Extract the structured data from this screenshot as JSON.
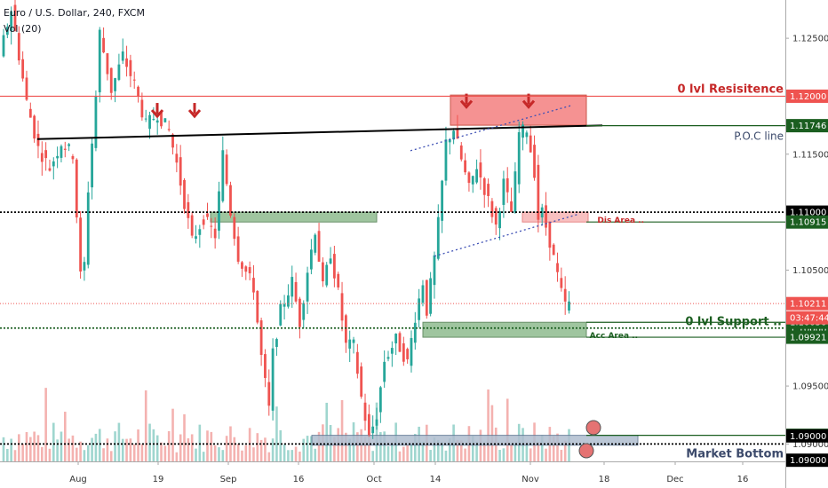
{
  "header": {
    "symbol_line": "Euro / U.S. Dollar, 240, FXCM",
    "indicator_line": "Vol (20)"
  },
  "colors": {
    "up": "#26a69a",
    "down": "#ef5350",
    "resistance": "#ef5350",
    "support_green": "#1b5e20",
    "zone_green": "#8fbc8f",
    "zone_red": "#f48080",
    "zone_pink": "#f7b6b6",
    "zone_blue": "#b0bed0",
    "dotted": "#000000"
  },
  "chart_data": {
    "type": "candlestick",
    "title": "Euro / U.S. Dollar, 240, FXCM",
    "xlabel": "",
    "ylabel": "",
    "ylim": [
      1.0885,
      1.1283
    ],
    "grid": false,
    "x_ticks": [
      "Aug",
      "19",
      "Sep",
      "16",
      "Oct",
      "14",
      "Nov",
      "18",
      "Dec",
      "16"
    ],
    "y_ticks": [
      1.125,
      1.12,
      1.115,
      1.11,
      1.105,
      1.1,
      1.095,
      1.09
    ],
    "y_tick_labels": [
      "1.12500",
      "1.12000",
      "1.11500",
      "1.11000",
      "1.10500",
      "1.10000",
      "1.09500",
      "1.09000"
    ],
    "price_path": [
      [
        0,
        1.1235
      ],
      [
        3,
        1.1275
      ],
      [
        7,
        1.1195
      ],
      [
        10,
        1.1155
      ],
      [
        13,
        1.1138
      ],
      [
        16,
        1.116
      ],
      [
        19,
        1.115
      ],
      [
        21,
        1.1045
      ],
      [
        22,
        1.1055
      ],
      [
        23,
        1.112
      ],
      [
        25,
        1.12
      ],
      [
        26,
        1.1255
      ],
      [
        29,
        1.1205
      ],
      [
        32,
        1.1235
      ],
      [
        35,
        1.121
      ],
      [
        38,
        1.1175
      ],
      [
        41,
        1.1185
      ],
      [
        44,
        1.117
      ],
      [
        46,
        1.1142
      ],
      [
        50,
        1.1075
      ],
      [
        53,
        1.1095
      ],
      [
        56,
        1.108
      ],
      [
        58,
        1.115
      ],
      [
        60,
        1.11
      ],
      [
        62,
        1.1062
      ],
      [
        66,
        1.1035
      ],
      [
        68,
        1.0975
      ],
      [
        70,
        1.093
      ],
      [
        71,
        1.0978
      ],
      [
        73,
        1.1015
      ],
      [
        76,
        1.104
      ],
      [
        78,
        1.1005
      ],
      [
        80,
        1.105
      ],
      [
        82,
        1.1085
      ],
      [
        84,
        1.1035
      ],
      [
        86,
        1.1065
      ],
      [
        88,
        1.103
      ],
      [
        90,
        1.0985
      ],
      [
        92,
        1.0985
      ],
      [
        94,
        1.094
      ],
      [
        96,
        1.0905
      ],
      [
        98,
        1.0925
      ],
      [
        100,
        1.0972
      ],
      [
        103,
        1.099
      ],
      [
        106,
        1.097
      ],
      [
        108,
        1.101
      ],
      [
        110,
        1.104
      ],
      [
        111,
        1.1015
      ],
      [
        113,
        1.106
      ],
      [
        114,
        1.109
      ],
      [
        116,
        1.116
      ],
      [
        118,
        1.1172
      ],
      [
        120,
        1.1145
      ],
      [
        122,
        1.112
      ],
      [
        124,
        1.114
      ],
      [
        127,
        1.111
      ],
      [
        129,
        1.1088
      ],
      [
        131,
        1.1125
      ],
      [
        133,
        1.11
      ],
      [
        134,
        1.113
      ],
      [
        135,
        1.1168
      ],
      [
        137,
        1.1172
      ],
      [
        139,
        1.1135
      ],
      [
        140,
        1.1095
      ],
      [
        141,
        1.11
      ],
      [
        143,
        1.1075
      ],
      [
        144,
        1.106
      ],
      [
        145,
        1.1045
      ],
      [
        146,
        1.103
      ],
      [
        147,
        1.102
      ]
    ],
    "levels": [
      {
        "name": "0 lvl Resisitence",
        "value": 1.12,
        "label": "1.12000",
        "style": "solid",
        "color": "#ef5350"
      },
      {
        "name": "P.O.C line",
        "value": 1.11746,
        "label": "1.11746",
        "style": "solid",
        "color": "#1b5e20"
      },
      {
        "name": "",
        "value": 1.11,
        "label": "1.11000",
        "style": "dotted",
        "color": "#000000"
      },
      {
        "name": "",
        "value": 1.10915,
        "label": "1.10915",
        "style": "solid",
        "color": "#1b5e20"
      },
      {
        "name": "",
        "value": 1.10211,
        "label": "1.10211",
        "style": "current",
        "color": "#ef5350"
      },
      {
        "name": "0 lvl Support",
        "value": 1.1,
        "label": "1.10000",
        "style": "dotted",
        "color": "#1b5e20"
      },
      {
        "name": "",
        "value": 1.1005,
        "label": "1.10050",
        "style": "solid",
        "color": "#1b5e20"
      },
      {
        "name": "",
        "value": 1.09921,
        "label": "1.09921",
        "style": "solid",
        "color": "#1b5e20"
      },
      {
        "name": "",
        "value": 1.09075,
        "label": "1.09075",
        "style": "solid",
        "color": "#1b5e20"
      },
      {
        "name": "Market Bottom",
        "value": 1.09,
        "label": "1.09000",
        "style": "dotted",
        "color": "#000000"
      }
    ],
    "countdown": "03:47:44",
    "annotations": {
      "resistance": "0 lvl Resisitence",
      "poc": "P.O.C line",
      "dis_area": "Dis Area ..",
      "support": "0 lvl Support ..",
      "acc_area": "Acc Area ..",
      "bottom": "Market Bottom"
    }
  }
}
